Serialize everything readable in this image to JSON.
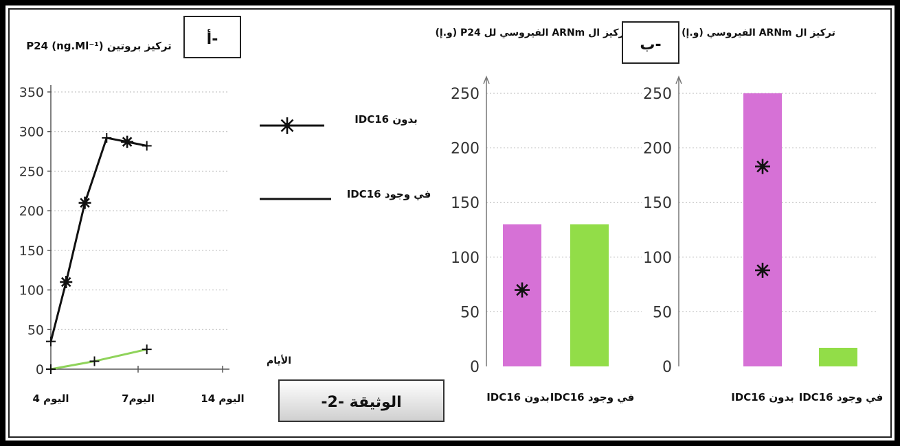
{
  "document_label": "الوثيقة -2-",
  "panels": {
    "a": {
      "tag": "أ-"
    },
    "b": {
      "tag": "ب-"
    }
  },
  "colors": {
    "pink": "#d671d6",
    "green": "#92dd48",
    "line_green": "#8fd35a",
    "black": "#111111",
    "grid": "#b8b8b8"
  },
  "legend": {
    "without_label": "بدون IDC16",
    "with_label": "في وجود IDC16"
  },
  "chart_data": [
    {
      "id": "line",
      "type": "line",
      "ylabel": "تركيز بروتين P24 (ng.Ml⁻¹)",
      "xlabel": "الأيام",
      "ylim": [
        0,
        350
      ],
      "yticks": [
        0,
        50,
        100,
        150,
        200,
        250,
        300,
        350
      ],
      "ytick_labels": [
        "0",
        "50",
        "100",
        "150",
        "200",
        "250",
        "300",
        "350"
      ],
      "x_ticks": [
        4,
        7,
        14
      ],
      "x_tick_labels": [
        "اليوم 4",
        "اليوم7",
        "اليوم 14"
      ],
      "series": [
        {
          "name": "بدون IDC16",
          "style": "star",
          "x": [
            0,
            0.35,
            0.78,
            1.28,
            1.75,
            2.2
          ],
          "y": [
            35,
            110,
            210,
            292,
            287,
            282
          ]
        },
        {
          "name": "في وجود IDC16",
          "style": "plain",
          "x": [
            0,
            1.0,
            2.2
          ],
          "y": [
            0,
            10,
            25
          ]
        }
      ]
    },
    {
      "id": "bar1",
      "type": "bar",
      "ylabel": "تركيز ال ARNm الفيروسي لل P24 (و.إ)",
      "ylim": [
        0,
        250
      ],
      "yticks": [
        0,
        50,
        100,
        150,
        200,
        250
      ],
      "categories": [
        "بدون IDC16",
        "في وجود IDC16"
      ],
      "values": [
        130,
        130
      ],
      "bar_colors": [
        "#d671d6",
        "#92dd48"
      ],
      "stars": [
        [
          0,
          70
        ]
      ]
    },
    {
      "id": "bar2",
      "type": "bar",
      "ylabel": "تركيز ال ARNm الفيروسي (و.إ)",
      "ylim": [
        0,
        250
      ],
      "yticks": [
        0,
        50,
        100,
        150,
        200,
        250
      ],
      "categories": [
        "بدون IDC16",
        "في وجود IDC16"
      ],
      "values": [
        250,
        17
      ],
      "bar_colors": [
        "#d671d6",
        "#92dd48"
      ],
      "stars": [
        [
          0,
          183
        ],
        [
          0,
          88
        ]
      ]
    }
  ]
}
